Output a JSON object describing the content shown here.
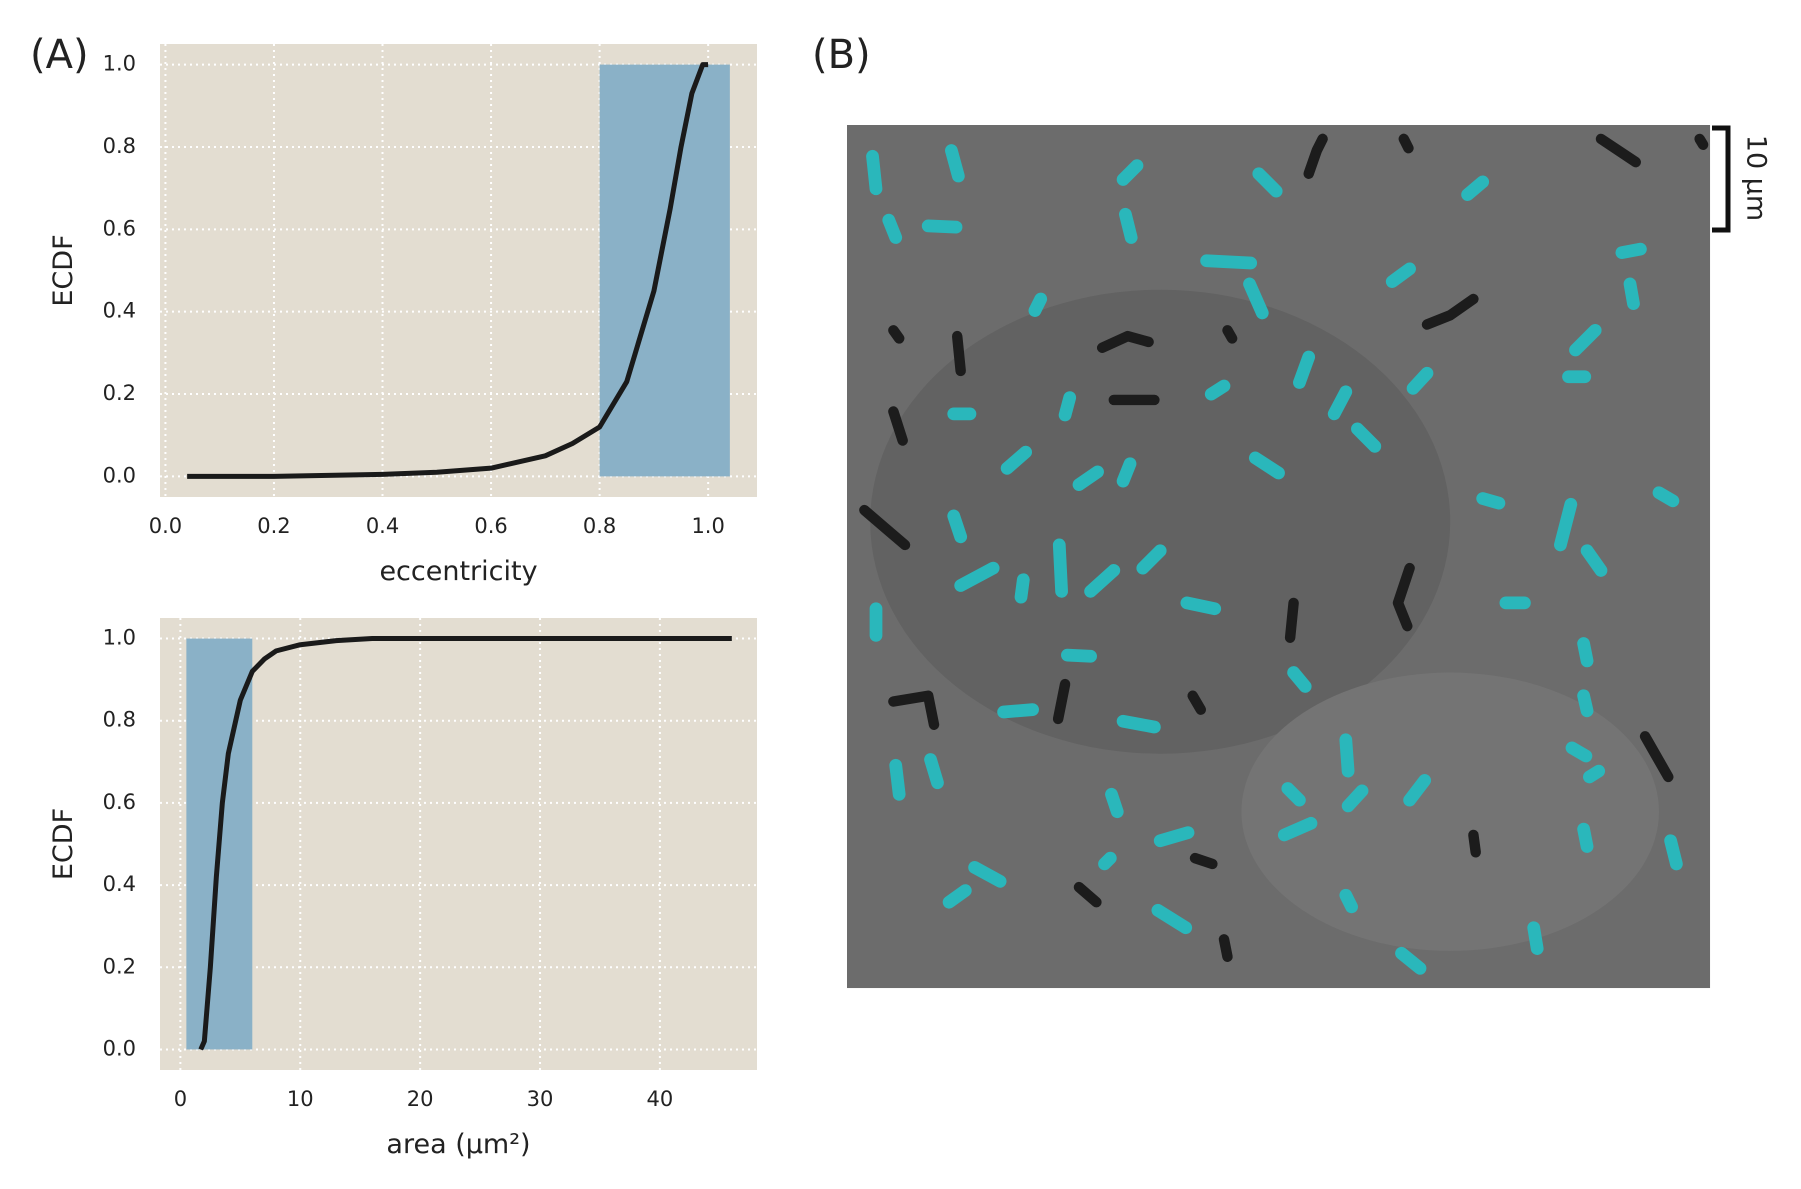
{
  "panels": [
    "(A)",
    "(B)"
  ],
  "scale_bar": "10 µm",
  "chart_data": [
    {
      "type": "line",
      "x_label": "eccentricity",
      "y_label": "ECDF",
      "x": [
        0.04,
        0.2,
        0.4,
        0.5,
        0.6,
        0.7,
        0.75,
        0.8,
        0.85,
        0.9,
        0.93,
        0.95,
        0.97,
        0.99,
        1.0
      ],
      "values": [
        0,
        0,
        0.005,
        0.01,
        0.02,
        0.05,
        0.08,
        0.12,
        0.23,
        0.45,
        0.65,
        0.8,
        0.93,
        1.0,
        1.0
      ],
      "color": "#1a1a1a",
      "highlight": {
        "x": [
          0.8,
          1.04
        ],
        "y": [
          0,
          1
        ],
        "color": "#8ab1c7"
      },
      "xlim": [
        -0.01,
        1.09
      ],
      "ylim": [
        -0.05,
        1.05
      ],
      "xticks": [
        {
          "value": 0,
          "label": "0.0"
        },
        0.2,
        0.4,
        0.6,
        0.8,
        {
          "value": 1,
          "label": "1.0"
        }
      ],
      "yticks": [
        {
          "value": 0,
          "label": "0.0"
        },
        0.2,
        0.4,
        0.6,
        0.8,
        {
          "value": 1,
          "label": "1.0"
        }
      ],
      "grid": true
    },
    {
      "type": "line",
      "x_label": "area (µm²)",
      "y_label": "ECDF",
      "x": [
        1.7,
        2,
        2.5,
        3,
        3.5,
        4,
        5,
        6,
        7,
        8,
        10,
        13,
        16,
        46
      ],
      "values": [
        0,
        0.02,
        0.2,
        0.42,
        0.6,
        0.72,
        0.85,
        0.92,
        0.95,
        0.97,
        0.985,
        0.995,
        1,
        1
      ],
      "color": "#1a1a1a",
      "highlight": {
        "x": [
          0.5,
          6.0
        ],
        "y": [
          0,
          1
        ],
        "color": "#8ab1c7"
      },
      "xlim": [
        -1.7,
        48.1
      ],
      "ylim": [
        -0.05,
        1.05
      ],
      "xticks": [
        0,
        10,
        20,
        30,
        40
      ],
      "yticks": [
        {
          "value": 0,
          "label": "0.0"
        },
        0.2,
        0.4,
        0.6,
        0.8,
        {
          "value": 1,
          "label": "1.0"
        }
      ],
      "grid": true
    }
  ]
}
